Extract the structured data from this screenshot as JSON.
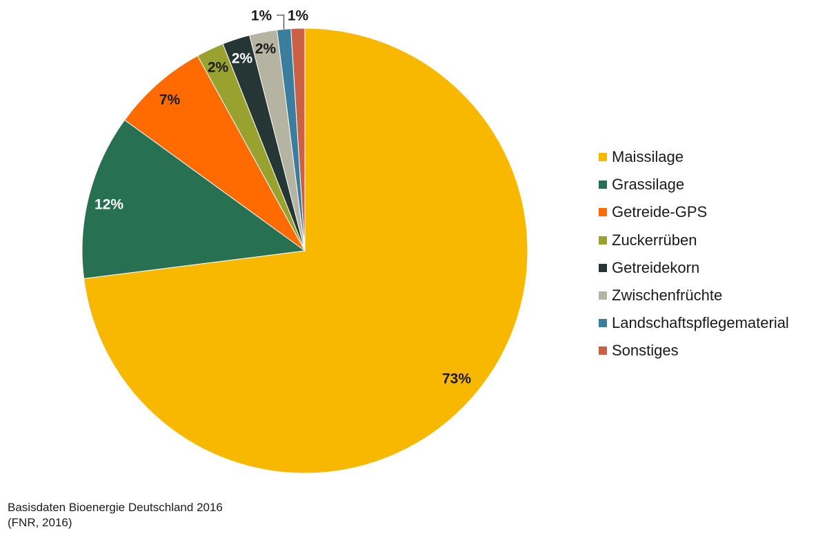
{
  "chart_data": {
    "type": "pie",
    "start": "12 o'clock, clockwise",
    "slices": [
      {
        "name": "Maissilage",
        "value": 73,
        "label": "73%",
        "color": "#F9B800",
        "label_color": "#1a1a1a"
      },
      {
        "name": "Grassilage",
        "value": 12,
        "label": "12%",
        "color": "#287052",
        "label_color": "#ffffff"
      },
      {
        "name": "Getreide-GPS",
        "value": 7,
        "label": "7%",
        "color": "#FF6B00",
        "label_color": "#1a1a1a"
      },
      {
        "name": "Zuckerrüben",
        "value": 2,
        "label": "2%",
        "color": "#99A22F",
        "label_color": "#1a1a1a"
      },
      {
        "name": "Getreidekorn",
        "value": 2,
        "label": "2%",
        "color": "#253634",
        "label_color": "#ffffff"
      },
      {
        "name": "Zwischenfrüchte",
        "value": 2,
        "label": "2%",
        "color": "#B5B3A1",
        "label_color": "#1a1a1a"
      },
      {
        "name": "Landschaftspflegematerial",
        "value": 1,
        "label": "1%",
        "color": "#3A7D9D",
        "label_color": "#1a1a1a"
      },
      {
        "name": "Sonstiges",
        "value": 1,
        "label": "1%",
        "color": "#CB6144",
        "label_color": "#1a1a1a"
      }
    ],
    "legend_position": "right"
  },
  "source": {
    "line1": "Basisdaten Bioenergie Deutschland 2016",
    "line2": "(FNR, 2016)"
  }
}
